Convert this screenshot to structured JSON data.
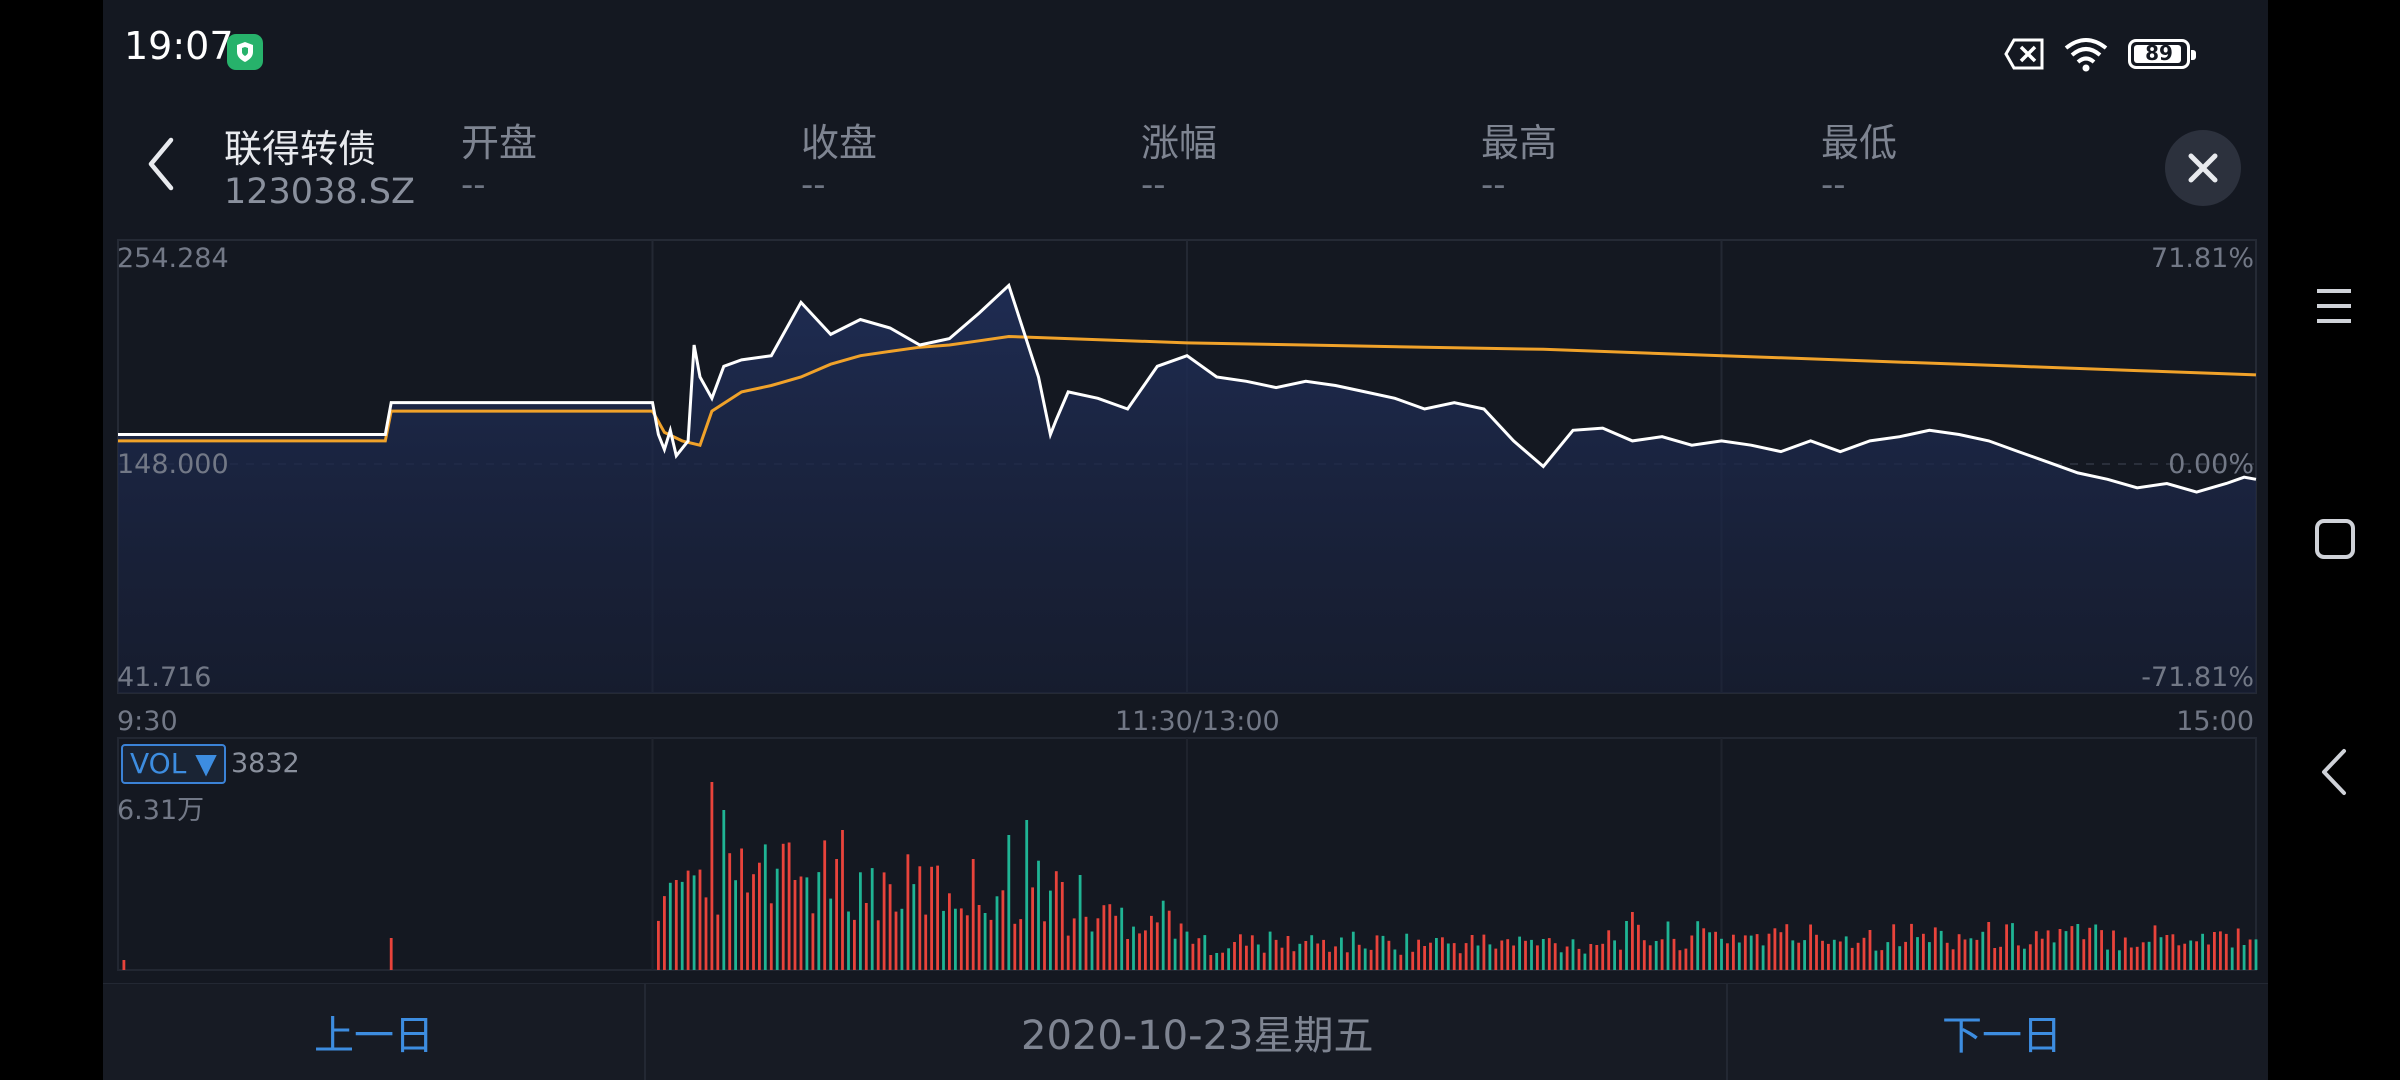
{
  "status": {
    "time": "19:07",
    "battery": "89"
  },
  "header": {
    "name": "联得转债",
    "code": "123038.SZ",
    "metrics": [
      {
        "label": "开盘",
        "value": "--"
      },
      {
        "label": "收盘",
        "value": "--"
      },
      {
        "label": "涨幅",
        "value": "--"
      },
      {
        "label": "最高",
        "value": "--"
      },
      {
        "label": "最低",
        "value": "--"
      }
    ]
  },
  "chart": {
    "y_top": "254.284",
    "y_mid": "148.000",
    "y_bot": "41.716",
    "pct_top": "71.81%",
    "pct_mid": "0.00%",
    "pct_bot": "-71.81%",
    "time_start": "9:30",
    "time_mid": "11:30/13:00",
    "time_end": "15:00"
  },
  "volume": {
    "tag": "VOL ▼",
    "value": "3832",
    "max": "6.31万"
  },
  "footer": {
    "prev": "上一日",
    "date": "2020-10-23星期五",
    "next": "下一日"
  },
  "colors": {
    "price_line": "#ffffff",
    "avg_line": "#f0a22a",
    "up": "#e8433b",
    "down": "#1fb494",
    "accent": "#3d8de0"
  },
  "chart_data": {
    "type": "line",
    "title": "",
    "xlabel": "",
    "ylabel": "",
    "ylim": [
      41.716,
      254.284
    ],
    "x_ticks": [
      "9:30",
      "11:30/13:00",
      "15:00"
    ],
    "y_ticks": [
      "254.284",
      "148.000",
      "41.716"
    ],
    "y_right_ticks": [
      "71.81%",
      "0.00%",
      "-71.81%"
    ],
    "series": [
      {
        "name": "",
        "x": [
          0,
          45,
          46,
          90,
          91,
          92,
          93,
          94,
          96,
          97,
          98,
          100,
          102,
          105,
          110,
          115,
          120,
          125,
          130,
          135,
          140,
          145,
          150,
          155,
          157,
          158,
          160,
          165,
          170,
          175,
          180,
          185,
          190,
          195,
          200,
          205,
          210,
          215,
          220,
          225,
          230,
          235,
          240,
          245,
          250,
          255,
          260,
          265,
          270,
          275,
          280,
          285,
          290,
          295,
          300,
          305,
          310,
          315,
          320,
          325,
          330,
          335,
          340,
          345,
          350,
          355,
          358,
          360
        ],
        "values": [
          163,
          163,
          178,
          178,
          163,
          156,
          165,
          153,
          160,
          205,
          190,
          180,
          195,
          198,
          200,
          225,
          210,
          217,
          213,
          205,
          208,
          220,
          233,
          190,
          163,
          170,
          183,
          180,
          175,
          195,
          200,
          190,
          188,
          185,
          188,
          186,
          183,
          180,
          175,
          178,
          175,
          160,
          148,
          165,
          166,
          160,
          162,
          158,
          160,
          158,
          155,
          160,
          155,
          160,
          162,
          165,
          163,
          160,
          155,
          150,
          145,
          142,
          138,
          140,
          136,
          140,
          143,
          142
        ]
      },
      {
        "name": "",
        "x": [
          0,
          45,
          46,
          90,
          92,
          95,
          98,
          100,
          105,
          110,
          115,
          120,
          125,
          130,
          135,
          140,
          145,
          150,
          160,
          180,
          200,
          220,
          240,
          260,
          280,
          300,
          320,
          340,
          360
        ],
        "values": [
          160,
          160,
          174,
          174,
          164,
          160,
          158,
          174,
          183,
          186,
          190,
          196,
          200,
          202,
          204,
          205,
          207,
          209,
          208,
          206,
          205,
          204,
          203,
          201,
          199,
          197,
          195,
          193,
          191
        ]
      }
    ],
    "volume_max": "6.31万"
  }
}
